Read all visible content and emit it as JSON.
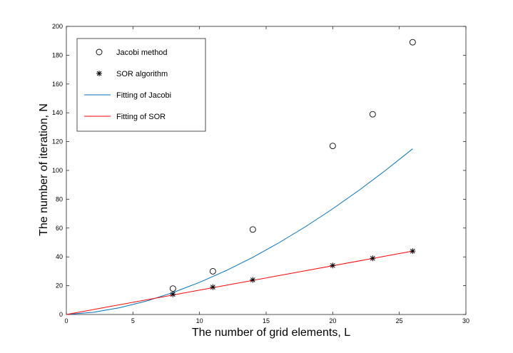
{
  "chart_data": {
    "type": "scatter",
    "xlabel": "The number of grid elements, L",
    "ylabel": "The number of iteration, N",
    "xlim": [
      0,
      30
    ],
    "ylim": [
      0,
      200
    ],
    "xticks": [
      0,
      5,
      10,
      15,
      20,
      25,
      30
    ],
    "yticks": [
      0,
      20,
      40,
      60,
      80,
      100,
      120,
      140,
      160,
      180,
      200
    ],
    "grid": false,
    "legend_position": "top-left",
    "series": [
      {
        "name": "Jacobi method",
        "kind": "markers",
        "marker": "circle",
        "color": "#000000",
        "x": [
          8,
          11,
          14,
          20,
          23,
          26
        ],
        "y": [
          18,
          30,
          59,
          117,
          139,
          189
        ]
      },
      {
        "name": "SOR algorithm",
        "kind": "markers",
        "marker": "asterisk",
        "color": "#000000",
        "x": [
          8,
          11,
          14,
          20,
          23,
          26
        ],
        "y": [
          14,
          19,
          24,
          34,
          39,
          44
        ]
      },
      {
        "name": "Fitting of Jacobi",
        "kind": "line",
        "color": "#0072BD",
        "x": [
          0,
          2,
          4,
          6,
          8,
          10,
          12,
          14,
          16,
          18,
          20,
          22,
          24,
          26
        ],
        "y": [
          0,
          1.5,
          4.7,
          9.3,
          15.2,
          22.3,
          30.5,
          39.7,
          50.0,
          61.2,
          73.4,
          86.4,
          100.3,
          115.0
        ]
      },
      {
        "name": "Fitting of SOR",
        "kind": "line",
        "color": "#FF0000",
        "x": [
          0,
          26
        ],
        "y": [
          0,
          44
        ]
      }
    ]
  }
}
